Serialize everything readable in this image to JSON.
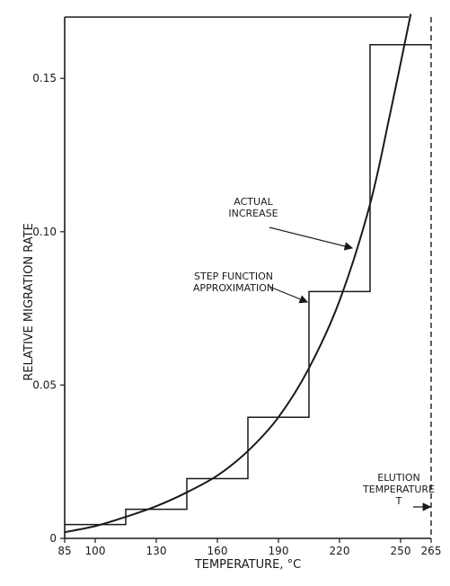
{
  "chart_data": {
    "type": "line",
    "xlabel": "TEMPERATURE,  °C",
    "ylabel": "RELATIVE MIGRATION RATE",
    "xlim": [
      85,
      265
    ],
    "ylim": [
      0,
      0.17
    ],
    "x_ticks": [
      {
        "value": 85,
        "label": "85"
      },
      {
        "value": 100,
        "label": "100"
      },
      {
        "value": 130,
        "label": "130"
      },
      {
        "value": 160,
        "label": "160"
      },
      {
        "value": 190,
        "label": "190"
      },
      {
        "value": 220,
        "label": "220"
      },
      {
        "value": 250,
        "label": "250"
      },
      {
        "value": 265,
        "label": "265"
      }
    ],
    "y_ticks": [
      {
        "value": 0,
        "label": "0"
      },
      {
        "value": 0.05,
        "label": "0.05"
      },
      {
        "value": 0.1,
        "label": "0.10"
      },
      {
        "value": 0.15,
        "label": "0.15"
      }
    ],
    "series": [
      {
        "name": "ACTUAL INCREASE",
        "style": "smooth",
        "x": [
          85,
          100,
          115,
          130,
          145,
          160,
          175,
          190,
          205,
          220,
          235,
          245,
          255
        ],
        "y": [
          0.002,
          0.004,
          0.007,
          0.0105,
          0.015,
          0.0205,
          0.0285,
          0.0395,
          0.0555,
          0.0775,
          0.109,
          0.139,
          0.171
        ]
      },
      {
        "name": "STEP FUNCTION APPROXIMATION",
        "style": "step",
        "x": [
          85,
          115,
          115,
          145,
          145,
          175,
          175,
          205,
          205,
          235,
          235,
          265
        ],
        "y": [
          0.0045,
          0.0045,
          0.0095,
          0.0095,
          0.0195,
          0.0195,
          0.0395,
          0.0395,
          0.0805,
          0.0805,
          0.161,
          0.161
        ]
      }
    ],
    "annotations": [
      {
        "lines": [
          "ACTUAL",
          "INCREASE"
        ],
        "target_series": "ACTUAL INCREASE"
      },
      {
        "lines": [
          "STEP FUNCTION",
          "APPROXIMATION"
        ],
        "target_series": "STEP FUNCTION APPROXIMATION"
      },
      {
        "lines": [
          "ELUTION",
          "TEMPERATURE",
          "T"
        ],
        "target": "dashed line at 265"
      }
    ],
    "grid": false,
    "colors": {
      "line": "#1a1a1a",
      "background": "#ffffff"
    }
  }
}
